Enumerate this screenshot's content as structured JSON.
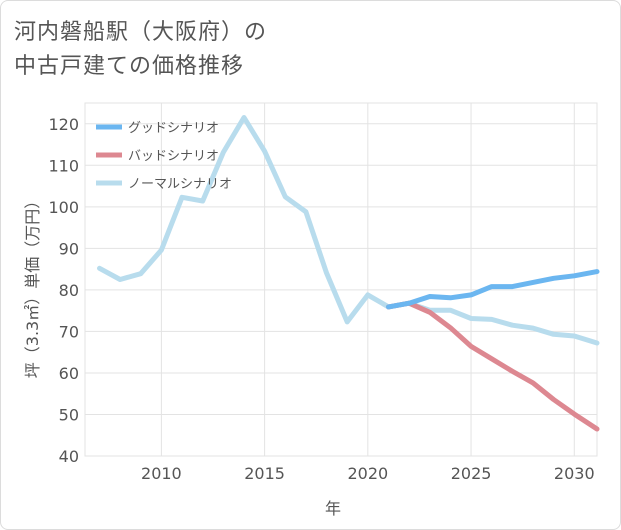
{
  "title_lines": [
    "河内磐船駅（大阪府）の",
    "中古戸建ての価格推移"
  ],
  "chart_data": {
    "type": "line",
    "xlabel": "年",
    "ylabel": "坪（3.3㎡）単価（万円）",
    "xlim": [
      2006.3,
      2031.1
    ],
    "ylim": [
      40,
      125
    ],
    "xticks": [
      2010,
      2015,
      2020,
      2025,
      2030
    ],
    "yticks": [
      40,
      50,
      60,
      70,
      80,
      90,
      100,
      110,
      120
    ],
    "grid": true,
    "legend_position": "top-left",
    "series": [
      {
        "name": "グッドシナリオ",
        "color": "#6bb6f0",
        "points": [
          [
            2021,
            75.9
          ],
          [
            2022,
            76.8
          ],
          [
            2023,
            78.4
          ],
          [
            2024,
            78.1
          ],
          [
            2025,
            78.8
          ],
          [
            2026,
            80.8
          ],
          [
            2027,
            80.8
          ],
          [
            2028,
            81.8
          ],
          [
            2029,
            82.8
          ],
          [
            2030,
            83.4
          ],
          [
            2031.1,
            84.4
          ]
        ]
      },
      {
        "name": "バッドシナリオ",
        "color": "#dd8891",
        "points": [
          [
            2021,
            75.9
          ],
          [
            2022,
            76.8
          ],
          [
            2023,
            74.6
          ],
          [
            2024,
            70.9
          ],
          [
            2025,
            66.4
          ],
          [
            2026,
            63.4
          ],
          [
            2027,
            60.4
          ],
          [
            2028,
            57.6
          ],
          [
            2029,
            53.6
          ],
          [
            2030,
            50.1
          ],
          [
            2031.1,
            46.5
          ]
        ]
      },
      {
        "name": "ノーマルシナリオ",
        "color": "#b8dced",
        "points": [
          [
            2007,
            85.2
          ],
          [
            2008,
            82.5
          ],
          [
            2009,
            83.9
          ],
          [
            2010,
            89.6
          ],
          [
            2011,
            102.3
          ],
          [
            2012,
            101.4
          ],
          [
            2013,
            113.1
          ],
          [
            2014,
            121.5
          ],
          [
            2015,
            113.4
          ],
          [
            2016,
            102.4
          ],
          [
            2017,
            98.8
          ],
          [
            2018,
            84.1
          ],
          [
            2019,
            72.3
          ],
          [
            2020,
            78.8
          ],
          [
            2021,
            75.9
          ],
          [
            2022,
            76.8
          ],
          [
            2023,
            75.1
          ],
          [
            2024,
            75.1
          ],
          [
            2025,
            73.1
          ],
          [
            2026,
            72.9
          ],
          [
            2027,
            71.5
          ],
          [
            2028,
            70.8
          ],
          [
            2029,
            69.3
          ],
          [
            2030,
            68.9
          ],
          [
            2031.1,
            67.2
          ]
        ]
      }
    ]
  }
}
